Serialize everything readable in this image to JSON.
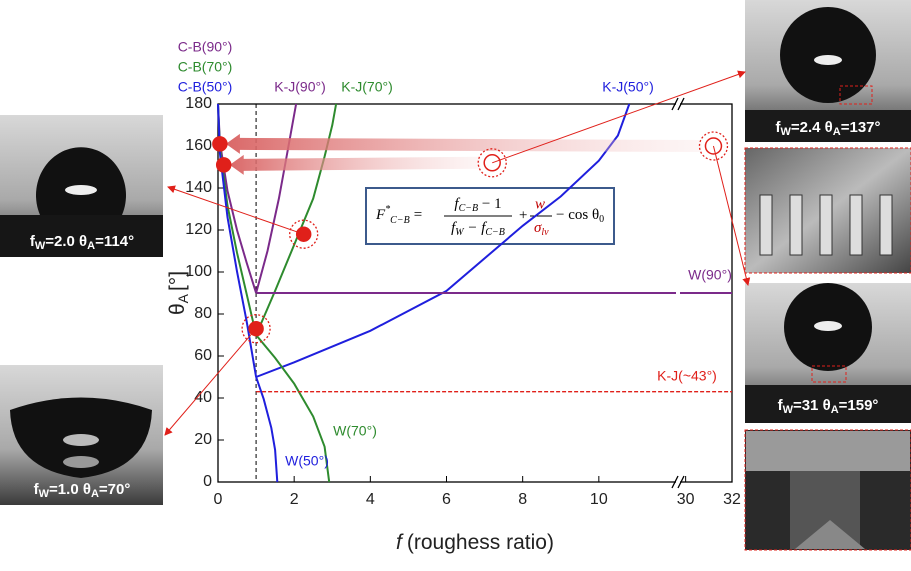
{
  "chart_data": {
    "type": "line",
    "xlabel": {
      "italic": "f",
      "text": "(roughess ratio)"
    },
    "ylabel": {
      "symbol": "θ",
      "sub": "A",
      "unit": "[°]"
    },
    "xlim": [
      0,
      32
    ],
    "xbreak": [
      12,
      29.8
    ],
    "ylim": [
      0,
      180
    ],
    "xticks": [
      0,
      2,
      4,
      6,
      8,
      10,
      30,
      32
    ],
    "yticks": [
      0,
      20,
      40,
      60,
      80,
      100,
      120,
      140,
      160,
      180
    ],
    "vline": 1,
    "series": [
      {
        "name": "C-B(90°)",
        "color": "#7b2a8a",
        "style": "solid",
        "x": [
          0,
          0.05,
          0.25,
          0.5,
          0.75,
          1
        ],
        "values": [
          180,
          161.8,
          138.6,
          120,
          104.5,
          90
        ]
      },
      {
        "name": "C-B(70°)",
        "color": "#2e8b2e",
        "style": "solid",
        "x": [
          0,
          0.05,
          0.25,
          0.5,
          0.75,
          1
        ],
        "values": [
          180,
          158.9,
          131.6,
          109.2,
          89.6,
          70
        ]
      },
      {
        "name": "C-B(50°)",
        "color": "#1f1fdd",
        "style": "solid",
        "x": [
          0,
          0.05,
          0.25,
          0.5,
          0.75,
          1
        ],
        "values": [
          180,
          156.6,
          126.1,
          100.3,
          76.6,
          50
        ]
      },
      {
        "name": "K-J(90°)",
        "color": "#7b2a8a",
        "style": "solid",
        "x": [
          1,
          1.3,
          1.6,
          1.8,
          1.95,
          2.05
        ],
        "values": [
          90,
          110,
          135,
          155,
          170,
          180
        ]
      },
      {
        "name": "K-J(70°)",
        "color": "#2e8b2e",
        "style": "solid",
        "x": [
          1,
          1.5,
          2,
          2.5,
          2.8,
          3.0,
          3.1
        ],
        "values": [
          70,
          91,
          113,
          135,
          155,
          170,
          180
        ]
      },
      {
        "name": "K-J(50°)",
        "color": "#1f1fdd",
        "style": "solid",
        "x": [
          1,
          2,
          4,
          6,
          8,
          9,
          10,
          10.5,
          10.8
        ],
        "values": [
          50,
          57,
          72,
          91,
          122,
          136,
          153,
          165,
          180
        ]
      },
      {
        "name": "W(90°)",
        "color": "#7b2a8a",
        "style": "solid",
        "x": [
          1,
          32
        ],
        "values": [
          90,
          90
        ]
      },
      {
        "name": "W(70°)",
        "color": "#2e8b2e",
        "style": "solid",
        "x": [
          1,
          1.5,
          2,
          2.5,
          2.8,
          2.92
        ],
        "values": [
          70,
          59.1,
          46.8,
          31.2,
          16.8,
          0
        ]
      },
      {
        "name": "W(50°)",
        "color": "#1f1fdd",
        "style": "solid",
        "x": [
          1,
          1.2,
          1.4,
          1.5,
          1.556
        ],
        "values": [
          50,
          39.5,
          25.8,
          15.3,
          0
        ]
      },
      {
        "name": "K-J(~43°)",
        "color": "#e0201a",
        "style": "dashed",
        "x": [
          1,
          32
        ],
        "values": [
          43,
          43
        ]
      }
    ],
    "markers": [
      {
        "x": 0.05,
        "y": 161,
        "style": "filled",
        "highlighted": false
      },
      {
        "x": 0.15,
        "y": 151,
        "style": "filled",
        "highlighted": false
      },
      {
        "x": 2.25,
        "y": 118,
        "style": "filled",
        "highlighted": true
      },
      {
        "x": 1,
        "y": 73,
        "style": "filled",
        "highlighted": true
      },
      {
        "x": 7.2,
        "y": 152,
        "style": "open",
        "highlighted": true
      },
      {
        "x": 31.2,
        "y": 160,
        "style": "open",
        "highlighted": true
      }
    ],
    "marker_color": "#e0201a",
    "formula": {
      "F": "F",
      "star": "*",
      "sub": "C−B",
      "eq": "=",
      "num": [
        "f",
        "C−B",
        " − 1"
      ],
      "den": [
        "f",
        "W",
        " − f",
        "C−B"
      ],
      "plus": "+",
      "w": "w",
      "sigma": "σ",
      "lv": "lv",
      "cos": "− cos θ",
      "zero": "0"
    },
    "photos": [
      {
        "label": [
          "f",
          "W",
          "=2.0 θ",
          "A",
          "=114°"
        ]
      },
      {
        "label": [
          "f",
          "W",
          "=1.0 θ",
          "A",
          "=70°"
        ]
      },
      {
        "label": [
          "f",
          "W",
          "=2.4 θ",
          "A",
          "=137°"
        ]
      },
      {
        "label": [
          "f",
          "W",
          "=31 θ",
          "A",
          "=159°"
        ]
      }
    ]
  }
}
